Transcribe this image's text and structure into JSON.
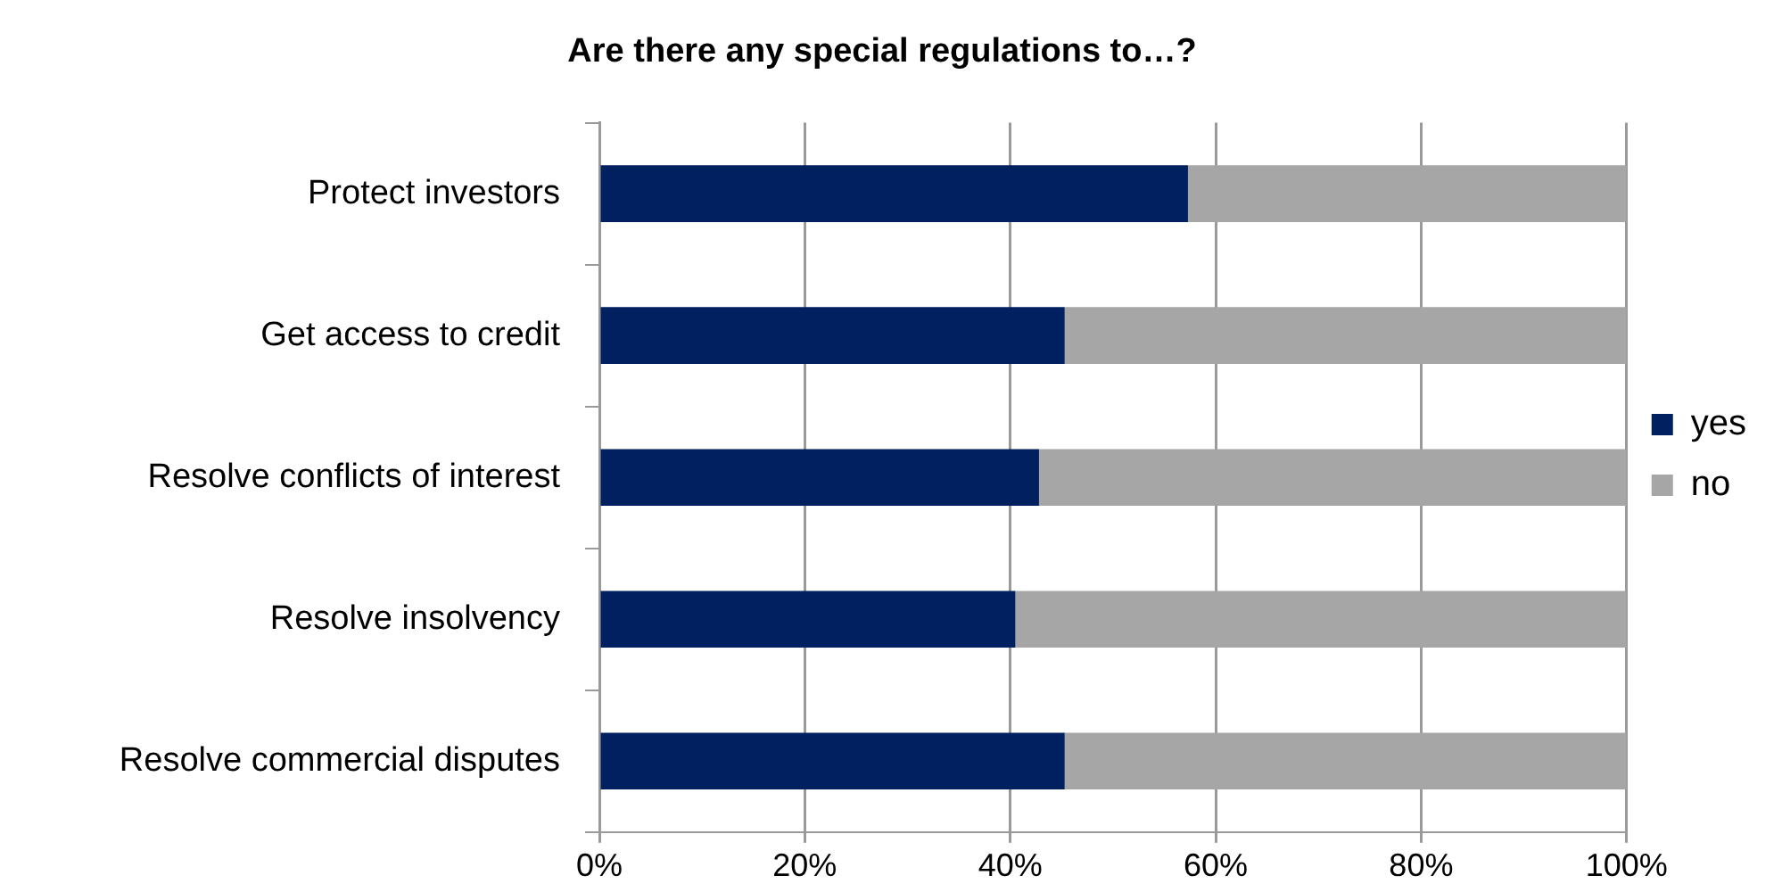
{
  "chart_data": {
    "type": "bar",
    "orientation": "horizontal",
    "stacked": true,
    "title": "Are there any special regulations to…?",
    "categories": [
      "Protect investors",
      "Get access to credit",
      "Resolve conflicts of interest",
      "Resolve insolvency",
      "Resolve commercial disputes"
    ],
    "series": [
      {
        "name": "yes",
        "color": "#002060",
        "values": [
          57.3,
          45.3,
          42.8,
          40.5,
          45.3
        ]
      },
      {
        "name": "no",
        "color": "#a6a6a6",
        "values": [
          42.7,
          54.7,
          57.2,
          59.5,
          54.7
        ]
      }
    ],
    "xlim": [
      0,
      100
    ],
    "xticks": [
      {
        "value": 0,
        "label": "0%"
      },
      {
        "value": 20,
        "label": "20%"
      },
      {
        "value": 40,
        "label": "40%"
      },
      {
        "value": 60,
        "label": "60%"
      },
      {
        "value": 80,
        "label": "80%"
      },
      {
        "value": 100,
        "label": "100%"
      }
    ],
    "grid": "x",
    "legend": "right"
  }
}
